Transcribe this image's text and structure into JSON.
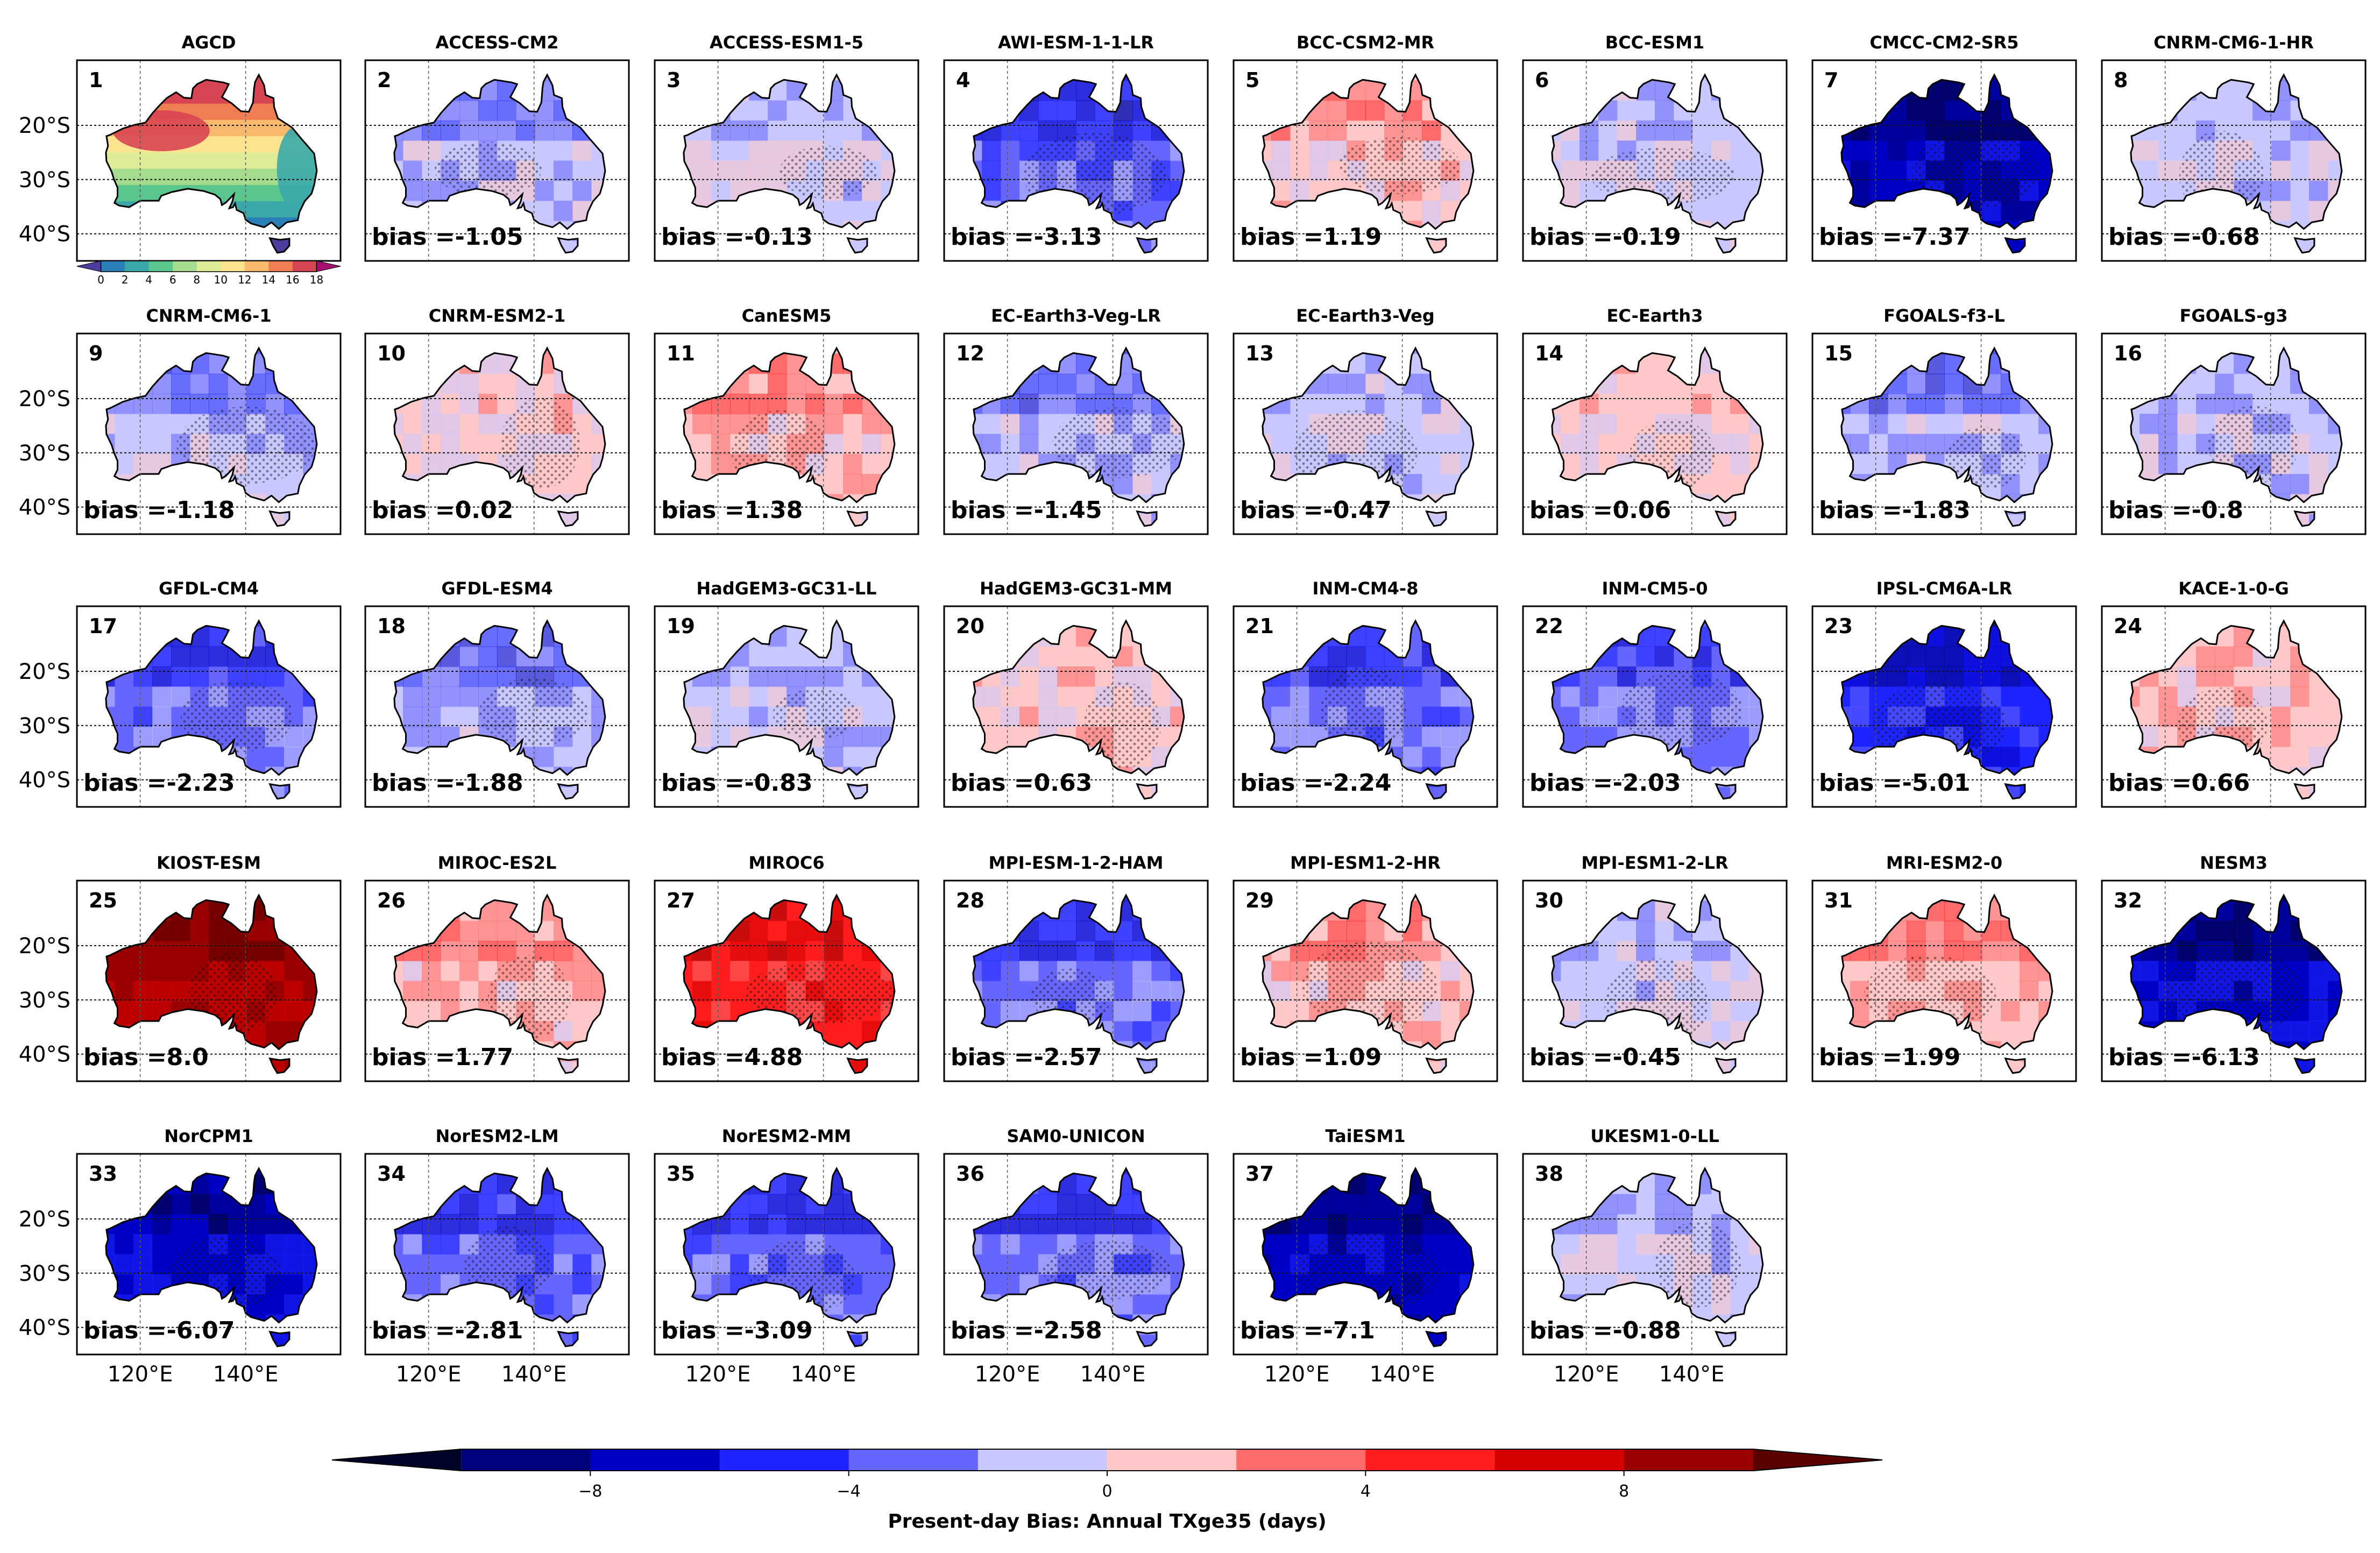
{
  "figure_title": "Present-day Bias: Annual TXge35 (days)",
  "colors": {
    "cbar": [
      "#020329",
      "#00007b",
      "#0000c4",
      "#1e24ff",
      "#6666ff",
      "#c8c8ff",
      "#ffc8c8",
      "#ff6a6a",
      "#ff1e1e",
      "#d50000",
      "#990000",
      "#5a0000"
    ],
    "obs": [
      "#4d3d9c",
      "#2a7fb8",
      "#3aa8a8",
      "#5ac58c",
      "#a6dc8f",
      "#e0eb95",
      "#fbe38f",
      "#f9b96c",
      "#ef7f52",
      "#d84552",
      "#a50f70"
    ],
    "land_outline": "#000000"
  },
  "chart_data": {
    "type": "heatmap",
    "title": "Present-day Bias: Annual TXge35 (days)",
    "xlabel": "",
    "ylabel": "",
    "x_ticks": [
      "120°E",
      "140°E"
    ],
    "y_ticks": [
      "20°S",
      "30°S",
      "40°S"
    ],
    "obs_colorbar": {
      "ticks": [
        "0",
        "2",
        "4",
        "6",
        "8",
        "10",
        "12",
        "14",
        "16",
        "18"
      ],
      "range": [
        0,
        18
      ]
    },
    "bias_colorbar": {
      "ticks": [
        "−8",
        "−4",
        "0",
        "4",
        "8"
      ],
      "range": [
        -12,
        12
      ],
      "label": "Present-day Bias: Annual TXge35 (days)"
    },
    "panels": [
      {
        "num": "1",
        "title": "AGCD",
        "bias": null,
        "bias_label": ""
      },
      {
        "num": "2",
        "title": "ACCESS-CM2",
        "bias": -1.05,
        "bias_label": "bias =-1.05"
      },
      {
        "num": "3",
        "title": "ACCESS-ESM1-5",
        "bias": -0.13,
        "bias_label": "bias =-0.13"
      },
      {
        "num": "4",
        "title": "AWI-ESM-1-1-LR",
        "bias": -3.13,
        "bias_label": "bias =-3.13"
      },
      {
        "num": "5",
        "title": "BCC-CSM2-MR",
        "bias": 1.19,
        "bias_label": "bias =1.19"
      },
      {
        "num": "6",
        "title": "BCC-ESM1",
        "bias": -0.19,
        "bias_label": "bias =-0.19"
      },
      {
        "num": "7",
        "title": "CMCC-CM2-SR5",
        "bias": -7.37,
        "bias_label": "bias =-7.37"
      },
      {
        "num": "8",
        "title": "CNRM-CM6-1-HR",
        "bias": -0.68,
        "bias_label": "bias =-0.68"
      },
      {
        "num": "9",
        "title": "CNRM-CM6-1",
        "bias": -1.18,
        "bias_label": "bias =-1.18"
      },
      {
        "num": "10",
        "title": "CNRM-ESM2-1",
        "bias": 0.02,
        "bias_label": "bias =0.02"
      },
      {
        "num": "11",
        "title": "CanESM5",
        "bias": 1.38,
        "bias_label": "bias =1.38"
      },
      {
        "num": "12",
        "title": "EC-Earth3-Veg-LR",
        "bias": -1.45,
        "bias_label": "bias =-1.45"
      },
      {
        "num": "13",
        "title": "EC-Earth3-Veg",
        "bias": -0.47,
        "bias_label": "bias =-0.47"
      },
      {
        "num": "14",
        "title": "EC-Earth3",
        "bias": 0.06,
        "bias_label": "bias =0.06"
      },
      {
        "num": "15",
        "title": "FGOALS-f3-L",
        "bias": -1.83,
        "bias_label": "bias =-1.83"
      },
      {
        "num": "16",
        "title": "FGOALS-g3",
        "bias": -0.8,
        "bias_label": "bias =-0.8"
      },
      {
        "num": "17",
        "title": "GFDL-CM4",
        "bias": -2.23,
        "bias_label": "bias =-2.23"
      },
      {
        "num": "18",
        "title": "GFDL-ESM4",
        "bias": -1.88,
        "bias_label": "bias =-1.88"
      },
      {
        "num": "19",
        "title": "HadGEM3-GC31-LL",
        "bias": -0.83,
        "bias_label": "bias =-0.83"
      },
      {
        "num": "20",
        "title": "HadGEM3-GC31-MM",
        "bias": 0.63,
        "bias_label": "bias =0.63"
      },
      {
        "num": "21",
        "title": "INM-CM4-8",
        "bias": -2.24,
        "bias_label": "bias =-2.24"
      },
      {
        "num": "22",
        "title": "INM-CM5-0",
        "bias": -2.03,
        "bias_label": "bias =-2.03"
      },
      {
        "num": "23",
        "title": "IPSL-CM6A-LR",
        "bias": -5.01,
        "bias_label": "bias =-5.01"
      },
      {
        "num": "24",
        "title": "KACE-1-0-G",
        "bias": 0.66,
        "bias_label": "bias =0.66"
      },
      {
        "num": "25",
        "title": "KIOST-ESM",
        "bias": 8.0,
        "bias_label": "bias =8.0"
      },
      {
        "num": "26",
        "title": "MIROC-ES2L",
        "bias": 1.77,
        "bias_label": "bias =1.77"
      },
      {
        "num": "27",
        "title": "MIROC6",
        "bias": 4.88,
        "bias_label": "bias =4.88"
      },
      {
        "num": "28",
        "title": "MPI-ESM-1-2-HAM",
        "bias": -2.57,
        "bias_label": "bias =-2.57"
      },
      {
        "num": "29",
        "title": "MPI-ESM1-2-HR",
        "bias": 1.09,
        "bias_label": "bias =1.09"
      },
      {
        "num": "30",
        "title": "MPI-ESM1-2-LR",
        "bias": -0.45,
        "bias_label": "bias =-0.45"
      },
      {
        "num": "31",
        "title": "MRI-ESM2-0",
        "bias": 1.99,
        "bias_label": "bias =1.99"
      },
      {
        "num": "32",
        "title": "NESM3",
        "bias": -6.13,
        "bias_label": "bias =-6.13"
      },
      {
        "num": "33",
        "title": "NorCPM1",
        "bias": -6.07,
        "bias_label": "bias =-6.07"
      },
      {
        "num": "34",
        "title": "NorESM2-LM",
        "bias": -2.81,
        "bias_label": "bias =-2.81"
      },
      {
        "num": "35",
        "title": "NorESM2-MM",
        "bias": -3.09,
        "bias_label": "bias =-3.09"
      },
      {
        "num": "36",
        "title": "SAM0-UNICON",
        "bias": -2.58,
        "bias_label": "bias =-2.58"
      },
      {
        "num": "37",
        "title": "TaiESM1",
        "bias": -7.1,
        "bias_label": "bias =-7.1"
      },
      {
        "num": "38",
        "title": "UKESM1-0-LL",
        "bias": -0.88,
        "bias_label": "bias =-0.88"
      }
    ]
  }
}
